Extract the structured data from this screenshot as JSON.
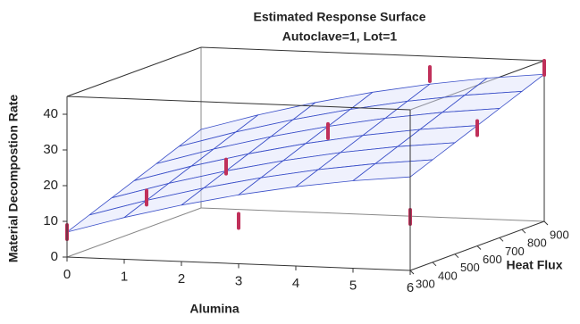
{
  "chart_data": {
    "type": "surface3d",
    "title": "Estimated Response Surface",
    "subtitle": "Autoclave=1, Lot=1",
    "xlabel": "Alumina",
    "ylabel": "Heat Flux",
    "zlabel": "Material Decompostion Rate",
    "xlim": [
      0,
      6
    ],
    "xticks": [
      0,
      1,
      2,
      3,
      4,
      5,
      6
    ],
    "ylim": [
      300,
      900
    ],
    "yticks": [
      300,
      400,
      500,
      600,
      700,
      800,
      900
    ],
    "zlim": [
      0,
      45
    ],
    "zticks": [
      0,
      10,
      20,
      30,
      40
    ],
    "surface": {
      "color": "#3a4fc8",
      "x": [
        0,
        1,
        2,
        3,
        4,
        5,
        6
      ],
      "y": [
        300,
        400,
        500,
        600,
        700,
        800,
        900
      ],
      "z": [
        [
          7,
          11.7,
          15.8,
          19.3,
          22.2,
          24.5,
          26.2
        ],
        [
          9.5,
          14.2,
          18.3,
          21.8,
          24.7,
          27,
          28.7
        ],
        [
          12,
          16.7,
          20.8,
          24.3,
          27.2,
          29.5,
          31.2
        ],
        [
          14.5,
          19.2,
          23.3,
          26.8,
          29.7,
          32,
          33.7
        ],
        [
          17,
          21.7,
          25.8,
          29.3,
          32.2,
          34.5,
          36.2
        ],
        [
          19.5,
          24.2,
          28.3,
          31.8,
          34.7,
          37,
          38.7
        ],
        [
          22,
          26.7,
          30.8,
          34.3,
          37.2,
          39.5,
          41.2
        ]
      ]
    },
    "points": {
      "color": "#c0305a",
      "x": [
        0,
        1,
        2,
        3,
        3,
        4,
        6,
        6,
        6
      ],
      "y": [
        300,
        400,
        500,
        300,
        700,
        900,
        300,
        600,
        900
      ],
      "z": [
        7,
        15,
        22,
        12,
        28,
        40,
        15,
        33,
        43
      ]
    }
  }
}
